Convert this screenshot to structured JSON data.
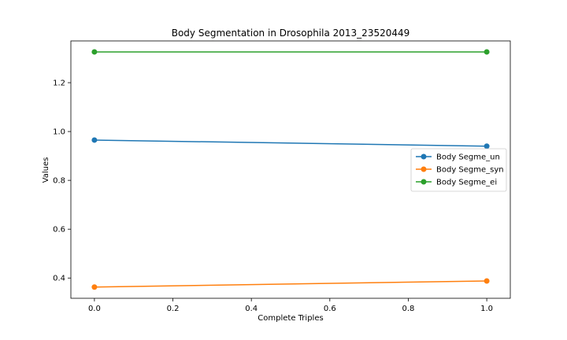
{
  "chart_data": {
    "type": "line",
    "title": "Body Segmentation in Drosophila 2013_23520449",
    "xlabel": "Complete Triples",
    "ylabel": "Values",
    "x": [
      0,
      1
    ],
    "xlim": [
      -0.06,
      1.06
    ],
    "ylim": [
      0.317,
      1.371
    ],
    "xticks": [
      0.0,
      0.2,
      0.4,
      0.6,
      0.8,
      1.0
    ],
    "xtick_labels": [
      "0.0",
      "0.2",
      "0.4",
      "0.6",
      "0.8",
      "1.0"
    ],
    "yticks": [
      0.4,
      0.6,
      0.8,
      1.0,
      1.2
    ],
    "ytick_labels": [
      "0.4",
      "0.6",
      "0.8",
      "1.0",
      "1.2"
    ],
    "grid": false,
    "legend_position": "center-right",
    "series": [
      {
        "name": "Body Segme_un",
        "values": [
          0.965,
          0.94
        ],
        "color": "#1f77b4"
      },
      {
        "name": "Body Segme_syn",
        "values": [
          0.363,
          0.388
        ],
        "color": "#ff7f0e"
      },
      {
        "name": "Body Segme_ei",
        "values": [
          1.326,
          1.326
        ],
        "color": "#2ca02c"
      }
    ]
  }
}
